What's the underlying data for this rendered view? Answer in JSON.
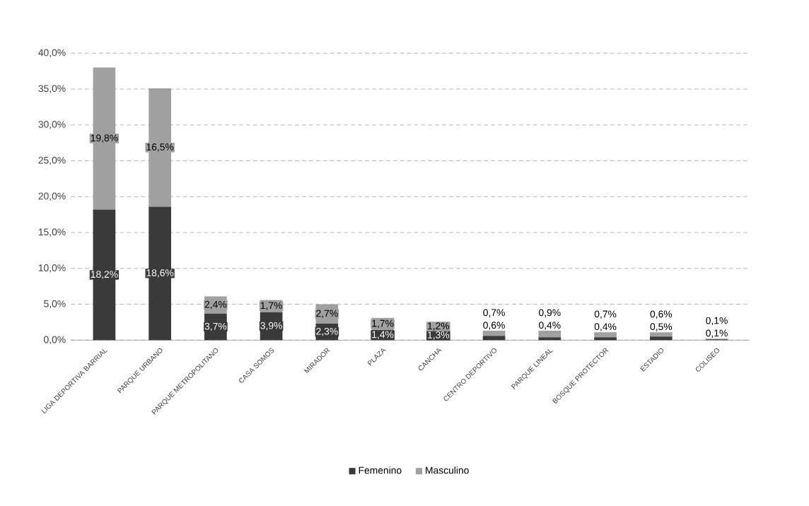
{
  "chart_data": {
    "type": "bar",
    "stacked": true,
    "grid": "y",
    "legend": "bottom",
    "categories": [
      "LIGA DEPORTIVA BARRIAL",
      "PARQUE URBANO",
      "PARQUE METROPOLITANO",
      "CASA SOMOS",
      "MIRADOR",
      "PLAZA",
      "CANCHA",
      "CENTRO DEPORTIVO",
      "PARQUE LINEAL",
      "BOSQUE PROTECTOR",
      "ESTADIO",
      "COLISEO"
    ],
    "ylim": [
      0,
      40
    ],
    "yticks": [
      {
        "value": 0,
        "label": "0,0%"
      },
      {
        "value": 5,
        "label": "5,0%"
      },
      {
        "value": 10,
        "label": "10,0%"
      },
      {
        "value": 15,
        "label": "15,0%"
      },
      {
        "value": 20,
        "label": "20,0%"
      },
      {
        "value": 25,
        "label": "25,0%"
      },
      {
        "value": 30,
        "label": "30,0%"
      },
      {
        "value": 35,
        "label": "35,0%"
      },
      {
        "value": 40,
        "label": "40,0%"
      }
    ],
    "series": [
      {
        "name": "Femenino",
        "color": "#3a3a3a",
        "values": [
          18.2,
          18.6,
          3.7,
          3.9,
          2.3,
          1.4,
          1.3,
          0.6,
          0.4,
          0.4,
          0.5,
          0.1
        ],
        "value_labels": [
          "18,2%",
          "18,6%",
          "3,7%",
          "3,9%",
          "2,3%",
          "1,4%",
          "1,3%",
          "0,6%",
          "0,4%",
          "0,4%",
          "0,5%",
          "0,1%"
        ]
      },
      {
        "name": "Masculino",
        "color": "#a0a0a0",
        "values": [
          19.8,
          16.5,
          2.4,
          1.7,
          2.7,
          1.7,
          1.2,
          0.7,
          0.9,
          0.7,
          0.6,
          0.1
        ],
        "value_labels": [
          "19,8%",
          "16,5%",
          "2,4%",
          "1,7%",
          "2,7%",
          "1,7%",
          "1,2%",
          "0,7%",
          "0,9%",
          "0,7%",
          "0,6%",
          "0,1%"
        ]
      }
    ]
  }
}
